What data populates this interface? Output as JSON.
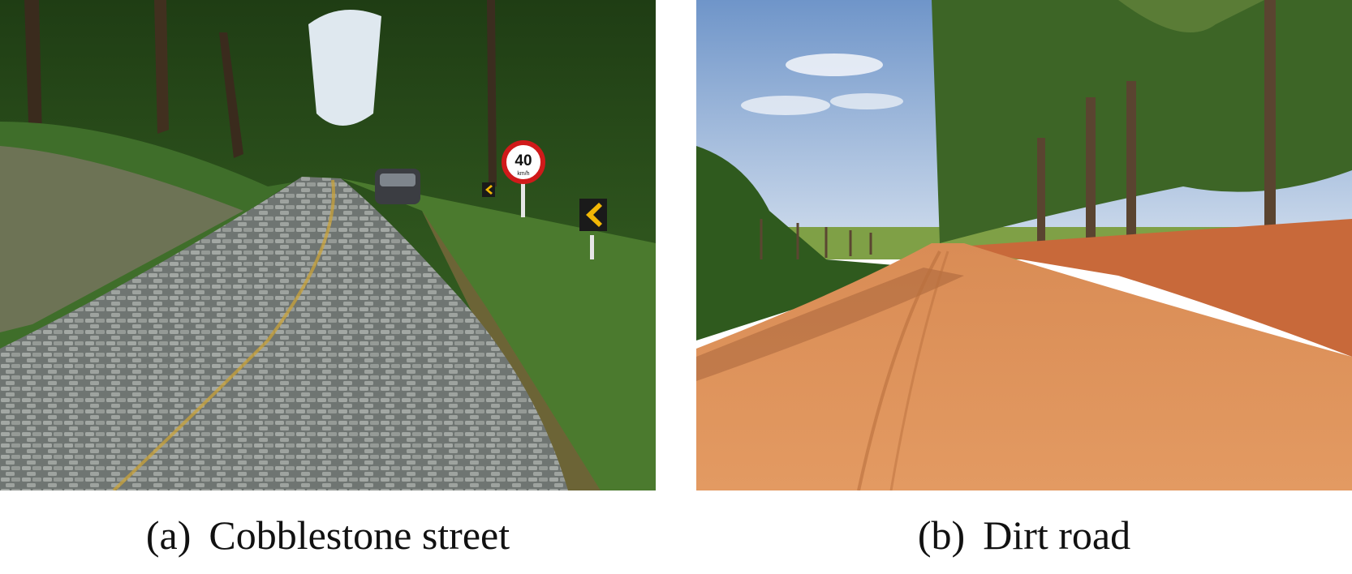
{
  "figure": {
    "panels": [
      {
        "tag": "(a)",
        "caption": "Cobblestone street",
        "scene": "cobblestone-road-photo",
        "sign": {
          "speed": "40",
          "unit": "km/h"
        }
      },
      {
        "tag": "(b)",
        "caption": "Dirt road",
        "scene": "dirt-road-photo"
      }
    ]
  },
  "colors": {
    "foliage": "#2f5a1e",
    "cobblestone": "#8e9490",
    "dirt": "#d9844a",
    "sky": "#a9c4e6",
    "sign_ring": "#d01a1a",
    "chevron": "#f2b705"
  }
}
